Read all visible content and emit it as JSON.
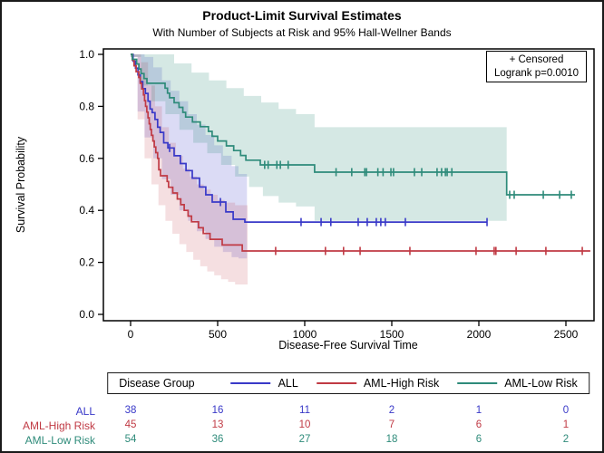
{
  "title": "Product-Limit Survival Estimates",
  "subtitle": "With Number of Subjects at Risk and 95% Hall-Wellner Bands",
  "inset": {
    "line1": "+ Censored",
    "line2": "Logrank p=0.0010"
  },
  "axes": {
    "x": {
      "label": "Disease-Free Survival Time",
      "ticks": [
        0,
        500,
        1000,
        1500,
        2000,
        2500
      ]
    },
    "y": {
      "label": "Survival Probability",
      "ticks": [
        "0.0",
        "0.2",
        "0.4",
        "0.6",
        "0.8",
        "1.0"
      ]
    }
  },
  "legend": {
    "title": "Disease Group",
    "position": "bottom"
  },
  "risk_table": {
    "times": [
      0,
      500,
      1000,
      1500,
      2000,
      2500
    ],
    "rows": [
      {
        "label": "ALL",
        "color": "#3939c8",
        "values": [
          38,
          16,
          11,
          2,
          1,
          0
        ]
      },
      {
        "label": "AML-High Risk",
        "color": "#c03a44",
        "values": [
          45,
          13,
          10,
          7,
          6,
          1
        ]
      },
      {
        "label": "AML-Low Risk",
        "color": "#2e8b7a",
        "values": [
          54,
          36,
          27,
          18,
          6,
          2
        ]
      }
    ]
  },
  "chart_data": {
    "type": "line",
    "style": "kaplan-meier-step",
    "title": "Product-Limit Survival Estimates",
    "xlabel": "Disease-Free Survival Time",
    "ylabel": "Survival Probability",
    "xlim": [
      -160,
      2680
    ],
    "ylim": [
      0,
      1.02
    ],
    "grid": false,
    "bands": "95% Hall-Wellner",
    "series": [
      {
        "name": "ALL",
        "color": "#3939c8",
        "band_opacity": 0.18,
        "steps": [
          [
            0,
            1.0
          ],
          [
            14,
            0.974
          ],
          [
            28,
            0.947
          ],
          [
            42,
            0.921
          ],
          [
            55,
            0.895
          ],
          [
            70,
            0.868
          ],
          [
            85,
            0.85
          ],
          [
            100,
            0.82
          ],
          [
            112,
            0.79
          ],
          [
            124,
            0.776
          ],
          [
            140,
            0.75
          ],
          [
            155,
            0.72
          ],
          [
            170,
            0.7
          ],
          [
            190,
            0.66
          ],
          [
            214,
            0.64
          ],
          [
            250,
            0.61
          ],
          [
            286,
            0.58
          ],
          [
            318,
            0.553
          ],
          [
            354,
            0.524
          ],
          [
            396,
            0.49
          ],
          [
            432,
            0.46
          ],
          [
            469,
            0.432
          ],
          [
            547,
            0.394
          ],
          [
            589,
            0.366
          ],
          [
            656,
            0.355
          ]
        ],
        "end_time": 2047,
        "censor_times": [
          224,
          516,
          979,
          1094,
          1150,
          1307,
          1359,
          1411,
          1437,
          1463,
          1578,
          2047
        ],
        "band": {
          "end_time": 668,
          "upper": [
            [
              0,
              1.0
            ],
            [
              80,
              0.99
            ],
            [
              130,
              0.95
            ],
            [
              180,
              0.9
            ],
            [
              230,
              0.86
            ],
            [
              280,
              0.82
            ],
            [
              330,
              0.77
            ],
            [
              380,
              0.73
            ],
            [
              430,
              0.69
            ],
            [
              480,
              0.65
            ],
            [
              530,
              0.61
            ],
            [
              580,
              0.57
            ],
            [
              620,
              0.54
            ],
            [
              668,
              0.52
            ]
          ],
          "lower": [
            [
              0,
              0.99
            ],
            [
              40,
              0.78
            ],
            [
              80,
              0.68
            ],
            [
              130,
              0.6
            ],
            [
              180,
              0.52
            ],
            [
              230,
              0.46
            ],
            [
              280,
              0.4
            ],
            [
              330,
              0.36
            ],
            [
              380,
              0.32
            ],
            [
              430,
              0.29
            ],
            [
              480,
              0.26
            ],
            [
              530,
              0.24
            ],
            [
              580,
              0.22
            ],
            [
              620,
              0.215
            ],
            [
              668,
              0.21
            ]
          ]
        }
      },
      {
        "name": "AML-High Risk",
        "color": "#c03a44",
        "band_opacity": 0.16,
        "steps": [
          [
            0,
            1.0
          ],
          [
            10,
            0.978
          ],
          [
            20,
            0.956
          ],
          [
            32,
            0.933
          ],
          [
            47,
            0.911
          ],
          [
            55,
            0.889
          ],
          [
            64,
            0.867
          ],
          [
            74,
            0.844
          ],
          [
            80,
            0.822
          ],
          [
            86,
            0.8
          ],
          [
            93,
            0.778
          ],
          [
            100,
            0.756
          ],
          [
            107,
            0.733
          ],
          [
            113,
            0.711
          ],
          [
            120,
            0.689
          ],
          [
            128,
            0.667
          ],
          [
            136,
            0.644
          ],
          [
            145,
            0.622
          ],
          [
            155,
            0.6
          ],
          [
            162,
            0.556
          ],
          [
            172,
            0.533
          ],
          [
            210,
            0.511
          ],
          [
            218,
            0.489
          ],
          [
            242,
            0.467
          ],
          [
            268,
            0.444
          ],
          [
            288,
            0.422
          ],
          [
            308,
            0.4
          ],
          [
            330,
            0.378
          ],
          [
            350,
            0.356
          ],
          [
            390,
            0.333
          ],
          [
            417,
            0.311
          ],
          [
            456,
            0.289
          ],
          [
            526,
            0.267
          ],
          [
            641,
            0.244
          ]
        ],
        "end_time": 2640,
        "censor_times": [
          833,
          1119,
          1223,
          1318,
          1604,
          1984,
          2088,
          2098,
          2214,
          2385,
          2594
        ],
        "band": {
          "end_time": 672,
          "upper": [
            [
              0,
              1.0
            ],
            [
              60,
              0.97
            ],
            [
              100,
              0.88
            ],
            [
              140,
              0.8
            ],
            [
              180,
              0.72
            ],
            [
              220,
              0.66
            ],
            [
              260,
              0.61
            ],
            [
              300,
              0.56
            ],
            [
              340,
              0.53
            ],
            [
              380,
              0.5
            ],
            [
              420,
              0.48
            ],
            [
              460,
              0.46
            ],
            [
              500,
              0.44
            ],
            [
              540,
              0.43
            ],
            [
              600,
              0.42
            ],
            [
              672,
              0.41
            ]
          ],
          "lower": [
            [
              0,
              0.99
            ],
            [
              40,
              0.75
            ],
            [
              80,
              0.6
            ],
            [
              120,
              0.5
            ],
            [
              160,
              0.42
            ],
            [
              200,
              0.36
            ],
            [
              240,
              0.31
            ],
            [
              280,
              0.27
            ],
            [
              320,
              0.24
            ],
            [
              360,
              0.21
            ],
            [
              400,
              0.185
            ],
            [
              440,
              0.165
            ],
            [
              480,
              0.15
            ],
            [
              520,
              0.135
            ],
            [
              560,
              0.125
            ],
            [
              600,
              0.115
            ],
            [
              672,
              0.105
            ]
          ]
        }
      },
      {
        "name": "AML-Low Risk",
        "color": "#2e8b7a",
        "band_opacity": 0.2,
        "steps": [
          [
            0,
            1.0
          ],
          [
            10,
            0.981
          ],
          [
            35,
            0.963
          ],
          [
            48,
            0.944
          ],
          [
            60,
            0.926
          ],
          [
            77,
            0.907
          ],
          [
            94,
            0.889
          ],
          [
            198,
            0.87
          ],
          [
            212,
            0.851
          ],
          [
            224,
            0.833
          ],
          [
            250,
            0.814
          ],
          [
            278,
            0.796
          ],
          [
            300,
            0.777
          ],
          [
            316,
            0.759
          ],
          [
            355,
            0.74
          ],
          [
            400,
            0.722
          ],
          [
            447,
            0.704
          ],
          [
            468,
            0.685
          ],
          [
            500,
            0.667
          ],
          [
            550,
            0.648
          ],
          [
            592,
            0.63
          ],
          [
            632,
            0.611
          ],
          [
            662,
            0.593
          ],
          [
            745,
            0.575
          ],
          [
            1057,
            0.547
          ],
          [
            2160,
            0.46
          ]
        ],
        "end_time": 2552,
        "censor_times": [
          770,
          790,
          840,
          860,
          905,
          1180,
          1270,
          1345,
          1355,
          1420,
          1450,
          1495,
          1510,
          1630,
          1672,
          1760,
          1786,
          1808,
          1818,
          1845,
          2177,
          2203,
          2370,
          2464,
          2531
        ],
        "band": {
          "end_time": 2160,
          "upper": [
            [
              0,
              1.0
            ],
            [
              150,
              1.0
            ],
            [
              250,
              0.965
            ],
            [
              350,
              0.93
            ],
            [
              450,
              0.9
            ],
            [
              550,
              0.87
            ],
            [
              650,
              0.84
            ],
            [
              750,
              0.815
            ],
            [
              850,
              0.79
            ],
            [
              950,
              0.77
            ],
            [
              1057,
              0.72
            ],
            [
              2160,
              0.715
            ]
          ],
          "lower": [
            [
              0,
              0.99
            ],
            [
              60,
              0.88
            ],
            [
              120,
              0.82
            ],
            [
              200,
              0.77
            ],
            [
              280,
              0.71
            ],
            [
              360,
              0.66
            ],
            [
              440,
              0.62
            ],
            [
              520,
              0.575
            ],
            [
              600,
              0.53
            ],
            [
              680,
              0.49
            ],
            [
              760,
              0.455
            ],
            [
              850,
              0.43
            ],
            [
              950,
              0.415
            ],
            [
              1057,
              0.36
            ],
            [
              2160,
              0.355
            ]
          ]
        }
      }
    ]
  }
}
